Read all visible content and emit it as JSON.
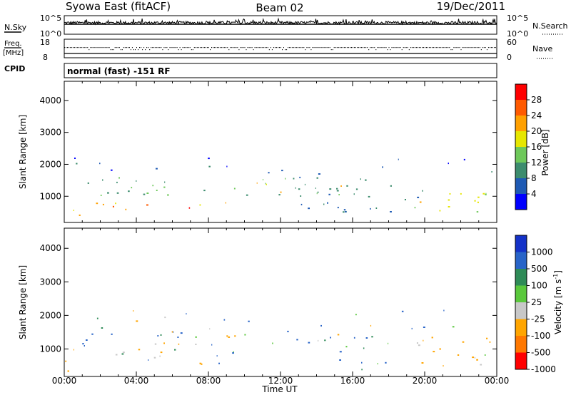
{
  "header": {
    "station": "Syowa East (fitACF)",
    "beam": "Beam 02",
    "date": "19/Dec/2011"
  },
  "noise_panel": {
    "left_label": "N.Sky",
    "right_label": "N.Search",
    "ticks_left": [
      "10^5",
      "10^0"
    ],
    "ticks_right": [
      "10^5",
      "10^0"
    ]
  },
  "freq_panel": {
    "left_label": "Freq.",
    "left_unit": "[MHz]",
    "right_label": "Nave",
    "ticks_left": [
      "18",
      "8"
    ],
    "ticks_right": [
      "60",
      "0"
    ]
  },
  "cpid_panel": {
    "label": "CPID",
    "text": "normal (fast) -151 RF"
  },
  "x_axis": {
    "label": "Time UT",
    "ticks": [
      "00:00",
      "04:00",
      "08:00",
      "12:00",
      "16:00",
      "20:00",
      "00:00"
    ]
  },
  "power_panel": {
    "ylabel": "Slant Range [km]",
    "yticks": [
      "1000",
      "2000",
      "3000",
      "4000"
    ],
    "colorbar_label": "Power [dB]",
    "colorbar_ticks": [
      "4",
      "8",
      "12",
      "16",
      "20",
      "24",
      "28"
    ],
    "colors": [
      "#0000ff",
      "#1e5ab4",
      "#3c8c6e",
      "#6ec85a",
      "#e6e600",
      "#ffa000",
      "#ff5a00",
      "#ff0000"
    ]
  },
  "velocity_panel": {
    "ylabel": "Slant Range [km]",
    "yticks": [
      "1000",
      "2000",
      "3000",
      "4000"
    ],
    "colorbar_label": "Velocity [m s^-1]",
    "colorbar_ticks": [
      "1000",
      "500",
      "100",
      "25",
      "-25",
      "-100",
      "-500",
      "-1000"
    ],
    "colors": [
      "#1432c8",
      "#2864c8",
      "#2e8b57",
      "#5ac83c",
      "#c8c8c8",
      "#ffa500",
      "#ff7800",
      "#ff0000"
    ]
  },
  "chart_data": [
    {
      "type": "heatmap",
      "title": "",
      "xlabel": "Time UT",
      "ylabel": "Slant Range [km]",
      "x_unit": "hours UT",
      "xlim": [
        0,
        24
      ],
      "ylim": [
        180,
        4600
      ],
      "colorbar": {
        "label": "Power [dB]",
        "range": [
          0,
          30
        ],
        "ticks": [
          4,
          8,
          12,
          16,
          20,
          24,
          28
        ]
      },
      "regions": [
        {
          "t": [
            0.2,
            17.0
          ],
          "r": [
            1050,
            1600
          ],
          "value": 12
        },
        {
          "t": [
            10.0,
            12.5
          ],
          "r": [
            1100,
            1450
          ],
          "value": 22
        },
        {
          "t": [
            15.0,
            17.5
          ],
          "r": [
            1250,
            1400
          ],
          "value": 20
        },
        {
          "t": [
            1.5,
            4.0
          ],
          "r": [
            800,
            1050
          ],
          "value": 18
        },
        {
          "t": [
            2.0,
            5.5
          ],
          "r": [
            500,
            800
          ],
          "value": 26
        },
        {
          "t": [
            5.5,
            7.0
          ],
          "r": [
            550,
            750
          ],
          "value": 26
        },
        {
          "t": [
            7.0,
            9.0
          ],
          "r": [
            650,
            850
          ],
          "value": 20
        },
        {
          "t": [
            0.0,
            1.0
          ],
          "r": [
            300,
            700
          ],
          "value": 18
        },
        {
          "t": [
            13.0,
            20.0
          ],
          "r": [
            500,
            1400
          ],
          "value": 8
        },
        {
          "t": [
            18.5,
            23.8
          ],
          "r": [
            500,
            1200
          ],
          "value": 18
        },
        {
          "t": [
            0.0,
            24.0
          ],
          "r": [
            1600,
            2300
          ],
          "value": 5
        }
      ]
    },
    {
      "type": "heatmap",
      "title": "",
      "xlabel": "Time UT",
      "ylabel": "Slant Range [km]",
      "x_unit": "hours UT",
      "xlim": [
        0,
        24
      ],
      "ylim": [
        180,
        4600
      ],
      "colorbar": {
        "label": "Velocity [m s^-1]",
        "ticks": [
          1000,
          500,
          100,
          25,
          -25,
          -100,
          -500,
          -1000
        ]
      },
      "regions": [
        {
          "t": [
            5.0,
            17.0
          ],
          "r": [
            1100,
            1600
          ],
          "value": 0
        },
        {
          "t": [
            2.0,
            9.5
          ],
          "r": [
            550,
            1000
          ],
          "value": 0
        },
        {
          "t": [
            0.0,
            1.0
          ],
          "r": [
            300,
            1000
          ],
          "value": -300
        },
        {
          "t": [
            1.0,
            3.0
          ],
          "r": [
            900,
            1500
          ],
          "value": 200
        },
        {
          "t": [
            3.0,
            4.5
          ],
          "r": [
            700,
            1100
          ],
          "value": -200
        },
        {
          "t": [
            14.5,
            18.0
          ],
          "r": [
            400,
            1400
          ],
          "value": 200
        },
        {
          "t": [
            19.5,
            23.8
          ],
          "r": [
            400,
            1400
          ],
          "value": -200
        },
        {
          "t": [
            0.0,
            24.0
          ],
          "r": [
            1600,
            2300
          ],
          "value": 0
        }
      ]
    }
  ]
}
